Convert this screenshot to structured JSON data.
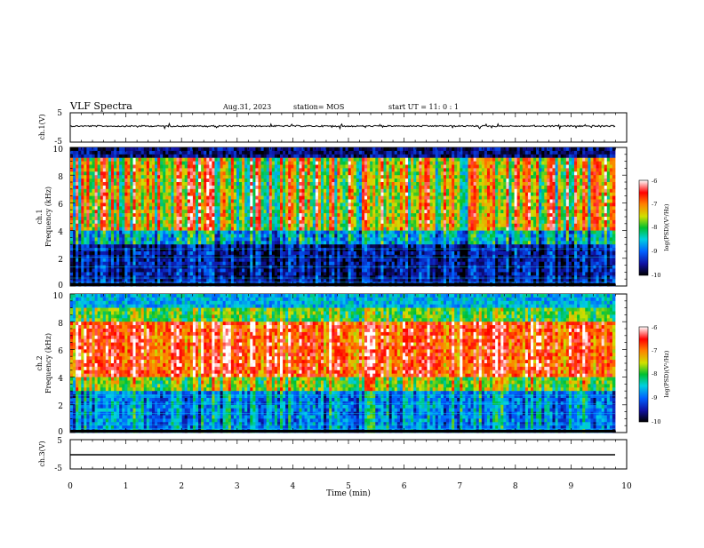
{
  "header": {
    "title": "VLF Spectra",
    "date": "Aug.31, 2023",
    "station": "station= MOS",
    "start": "start  UT =   11: 0  : 1"
  },
  "chart_data": [
    {
      "type": "line",
      "name": "ch1-waveform",
      "ylabel": "ch.1(V)",
      "ylim": [
        -5,
        5
      ],
      "yticks": [
        "5",
        "-5"
      ],
      "xlim": [
        0,
        10
      ]
    },
    {
      "type": "heatmap",
      "name": "ch1-spectrogram",
      "ylabel": "ch.1\nFrequency (kHz)",
      "ylabel_top": "ch.1",
      "ylabel_bottom": "Frequency (kHz)",
      "ylim": [
        0,
        10
      ],
      "yticks": [
        "0",
        "2",
        "4",
        "6",
        "8",
        "10"
      ],
      "xlim": [
        0,
        10
      ],
      "colorbar": {
        "label": "log(PSD)(V²/Hz)",
        "range": [
          -10,
          -6
        ],
        "ticks": [
          "-6",
          "-7",
          "-8",
          "-9",
          "-10"
        ]
      }
    },
    {
      "type": "heatmap",
      "name": "ch2-spectrogram",
      "ylabel_top": "ch.2",
      "ylabel_bottom": "Frequency (kHz)",
      "ylim": [
        0,
        10
      ],
      "yticks": [
        "0",
        "2",
        "4",
        "6",
        "8",
        "10"
      ],
      "xlim": [
        0,
        10
      ],
      "colorbar": {
        "label": "log(PSD)(V²/Hz)",
        "range": [
          -10,
          -6
        ],
        "ticks": [
          "-6",
          "-7",
          "-8",
          "-9",
          "-10"
        ]
      }
    },
    {
      "type": "line",
      "name": "ch3-waveform",
      "ylabel": "ch.3(V)",
      "ylim": [
        -5,
        5
      ],
      "yticks": [
        "5",
        "-5"
      ],
      "xlim": [
        0,
        10
      ],
      "xlabel": "Time  (min)",
      "xticks": [
        "0",
        "1",
        "2",
        "3",
        "4",
        "5",
        "6",
        "7",
        "8",
        "9",
        "10"
      ]
    }
  ]
}
